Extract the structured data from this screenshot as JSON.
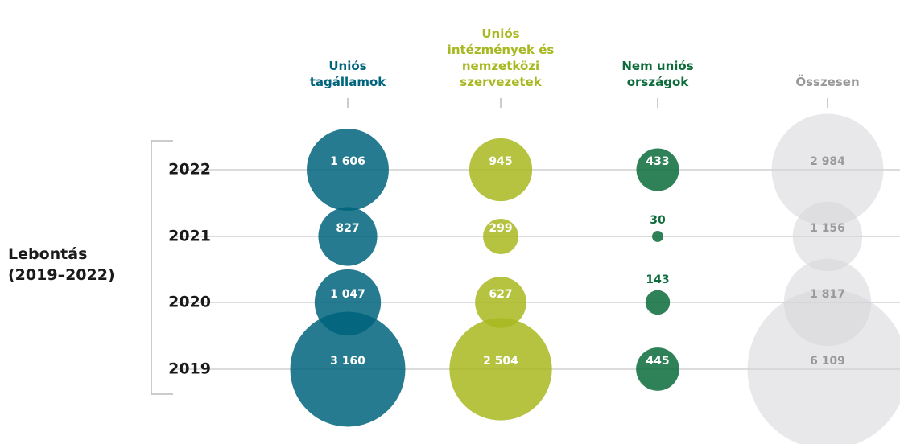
{
  "chart_data": {
    "type": "bubble",
    "label": "Lebontás (2019–2022)",
    "categories": [
      "2022",
      "2021",
      "2020",
      "2019"
    ],
    "series": [
      {
        "name": "Uniós tagállamok",
        "color": "#00647c",
        "values": [
          1606,
          827,
          1047,
          3160
        ],
        "value_labels": [
          "1 606",
          "827",
          "1 047",
          "3 160"
        ]
      },
      {
        "name": "Uniós intézmények és nemzetközi szervezetek",
        "color": "#a8b820",
        "values": [
          945,
          299,
          627,
          2504
        ],
        "value_labels": [
          "945",
          "299",
          "627",
          "2 504"
        ]
      },
      {
        "name": "Nem uniós országok",
        "color": "#0b6b3a",
        "values": [
          433,
          30,
          143,
          445
        ],
        "value_labels": [
          "433",
          "30",
          "143",
          "445"
        ]
      },
      {
        "name": "Összesen",
        "color": "#d5d6d8",
        "values": [
          2984,
          1156,
          1817,
          6109
        ],
        "value_labels": [
          "2 984",
          "1 156",
          "1 817",
          "6 109"
        ]
      }
    ]
  }
}
